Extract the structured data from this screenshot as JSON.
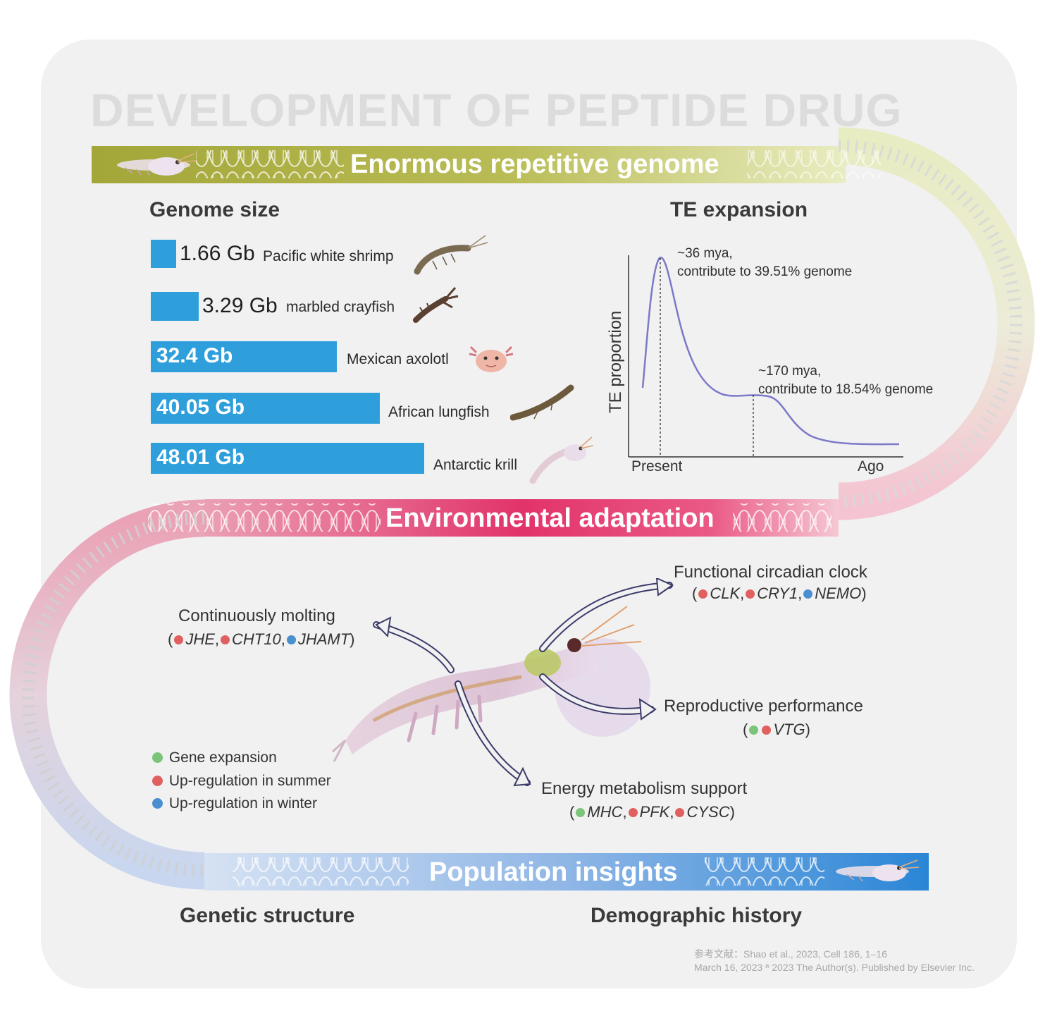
{
  "header": {
    "title": "DEVELOPMENT OF PEPTIDE DRUG"
  },
  "bands": {
    "genome": "Enormous repetitive genome",
    "environment": "Environmental adaptation",
    "population": "Population insights"
  },
  "genome_size": {
    "title": "Genome size",
    "items": [
      {
        "value": "1.66 Gb",
        "species": "Pacific white shrimp",
        "gb": 1.66
      },
      {
        "value": "3.29 Gb",
        "species": "marbled crayfish",
        "gb": 3.29
      },
      {
        "value": "32.4 Gb",
        "species": "Mexican axolotl",
        "gb": 32.4
      },
      {
        "value": "40.05 Gb",
        "species": "African lungfish",
        "gb": 40.05
      },
      {
        "value": "48.01 Gb",
        "species": "Antarctic krill",
        "gb": 48.01
      }
    ]
  },
  "te_expansion": {
    "title": "TE expansion",
    "ylabel": "TE proportion",
    "x_start": "Present",
    "x_end": "Ago",
    "peak1_line1": "~36 mya,",
    "peak1_line2": "contribute to 39.51% genome",
    "peak2_line1": "~170 mya,",
    "peak2_line2": "contribute to 18.54% genome"
  },
  "adaptation": {
    "molting": {
      "label": "Continuously molting",
      "genes": [
        "JHE",
        "CHT10",
        "JHAMT"
      ],
      "dots": [
        "#e06060",
        "#e06060",
        "#4a8fd0"
      ]
    },
    "clock": {
      "label": "Functional circadian clock",
      "genes": [
        "CLK",
        "CRY1",
        "NEMO"
      ],
      "dots": [
        "#e06060",
        "#e06060",
        "#4a8fd0"
      ]
    },
    "repro": {
      "label": "Reproductive performance",
      "genes": [
        "VTG"
      ],
      "dots": [
        "#7cc47a",
        "#e06060"
      ]
    },
    "energy": {
      "label": "Energy metabolism support",
      "genes": [
        "MHC",
        "PFK",
        "CYSC"
      ],
      "dots": [
        "#7cc47a",
        "#e06060",
        "#e06060"
      ]
    }
  },
  "legend": [
    {
      "label": "Gene expansion",
      "color": "#7cc47a"
    },
    {
      "label": "Up-regulation in summer",
      "color": "#e06060"
    },
    {
      "label": "Up-regulation in winter",
      "color": "#4a8fd0"
    }
  ],
  "population": {
    "left": "Genetic structure",
    "right": "Demographic history"
  },
  "footer": {
    "ref": "参考文献：Shao et al., 2023, Cell 186, 1–16",
    "copyright": "March 16, 2023 ª 2023 The Author(s). Published by Elsevier Inc."
  },
  "colors": {
    "bar": "#2f9fdc",
    "band_green": "#a9ac3c",
    "band_pink": "#e43a6c",
    "band_blue": "#2f8fd8",
    "te_curve": "#7b79c8"
  },
  "icons": [
    "krill-icon",
    "dna-helix-icon",
    "shrimp-icon",
    "crayfish-icon",
    "axolotl-icon",
    "lungfish-icon",
    "arrow-icon"
  ]
}
